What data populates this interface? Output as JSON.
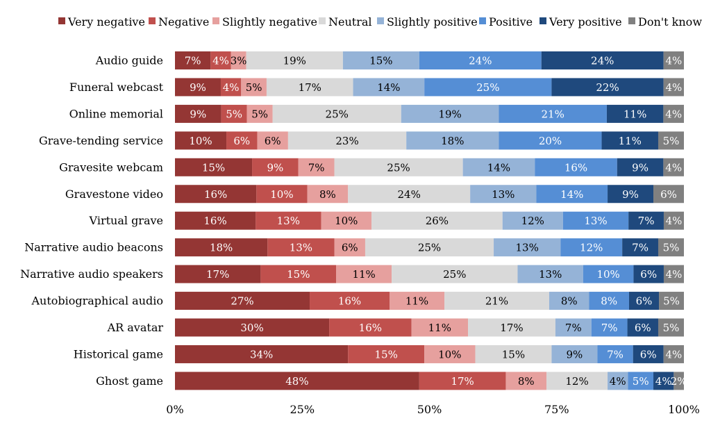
{
  "chart_data": {
    "type": "bar",
    "orientation": "horizontal",
    "stacked": true,
    "normalized": true,
    "title": "",
    "xlabel": "",
    "ylabel": "",
    "xlim": [
      0,
      1
    ],
    "x_ticks": [
      "0%",
      "25%",
      "50%",
      "75%",
      "100%"
    ],
    "legend_position": "top",
    "grid": false,
    "categories": [
      "Audio guide",
      "Funeral webcast",
      "Online memorial",
      "Grave-tending service",
      "Gravesite webcam",
      "Gravestone video",
      "Virtual grave",
      "Narrative audio beacons",
      "Narrative audio speakers",
      "Autobiographical audio",
      "AR avatar",
      "Historical game",
      "Ghost game"
    ],
    "series": [
      {
        "name": "Very negative",
        "color": "#943634",
        "label_color": "#ffffff",
        "values": [
          7,
          9,
          9,
          10,
          15,
          16,
          16,
          18,
          17,
          27,
          30,
          34,
          48
        ],
        "value_labels": [
          "7%",
          "9%",
          "9%",
          "10%",
          "15%",
          "16%",
          "16%",
          "18%",
          "17%",
          "27%",
          "30%",
          "34%",
          "48%"
        ]
      },
      {
        "name": "Negative",
        "color": "#c0504d",
        "label_color": "#ffffff",
        "values": [
          4,
          4,
          5,
          6,
          9,
          10,
          13,
          13,
          15,
          16,
          16,
          15,
          17
        ],
        "value_labels": [
          "4%",
          "4%",
          "5%",
          "6%",
          "9%",
          "10%",
          "13%",
          "13%",
          "15%",
          "16%",
          "16%",
          "15%",
          "17%"
        ]
      },
      {
        "name": "Slightly negative",
        "color": "#e6a09e",
        "label_color": "#000000",
        "values": [
          3,
          5,
          5,
          6,
          7,
          8,
          10,
          6,
          11,
          11,
          11,
          10,
          8
        ],
        "value_labels": [
          "3%",
          "5%",
          "5%",
          "6%",
          "7%",
          "8%",
          "10%",
          "6%",
          "11%",
          "11%",
          "11%",
          "10%",
          "8%"
        ]
      },
      {
        "name": "Neutral",
        "color": "#d9d9d9",
        "label_color": "#000000",
        "values": [
          19,
          17,
          25,
          23,
          25,
          24,
          26,
          25,
          25,
          21,
          17,
          15,
          12
        ],
        "value_labels": [
          "19%",
          "17%",
          "25%",
          "23%",
          "25%",
          "24%",
          "26%",
          "25%",
          "25%",
          "21%",
          "17%",
          "15%",
          "12%"
        ]
      },
      {
        "name": "Slightly positive",
        "color": "#95b3d7",
        "label_color": "#000000",
        "values": [
          15,
          14,
          19,
          18,
          14,
          13,
          12,
          13,
          13,
          8,
          7,
          9,
          4
        ],
        "value_labels": [
          "15%",
          "14%",
          "19%",
          "18%",
          "14%",
          "13%",
          "12%",
          "13%",
          "13%",
          "8%",
          "7%",
          "9%",
          "4%"
        ]
      },
      {
        "name": "Positive",
        "color": "#558ed5",
        "label_color": "#ffffff",
        "values": [
          24,
          25,
          21,
          20,
          16,
          14,
          13,
          12,
          10,
          8,
          7,
          7,
          5
        ],
        "value_labels": [
          "24%",
          "25%",
          "21%",
          "20%",
          "16%",
          "14%",
          "13%",
          "12%",
          "10%",
          "8%",
          "7%",
          "7%",
          "5%"
        ]
      },
      {
        "name": "Very positive",
        "color": "#1f497d",
        "label_color": "#ffffff",
        "values": [
          24,
          22,
          11,
          11,
          9,
          9,
          7,
          7,
          6,
          6,
          6,
          6,
          4
        ],
        "value_labels": [
          "24%",
          "22%",
          "11%",
          "11%",
          "9%",
          "9%",
          "7%",
          "7%",
          "6%",
          "6%",
          "6%",
          "6%",
          "4%"
        ]
      },
      {
        "name": "Don't know",
        "color": "#808080",
        "label_color": "#ffffff",
        "values": [
          4,
          4,
          4,
          5,
          4,
          6,
          4,
          5,
          4,
          5,
          5,
          4,
          2
        ],
        "value_labels": [
          "4%",
          "4%",
          "4%",
          "5%",
          "4%",
          "6%",
          "4%",
          "5%",
          "4%",
          "5%",
          "5%",
          "4%",
          "2%"
        ]
      }
    ]
  }
}
